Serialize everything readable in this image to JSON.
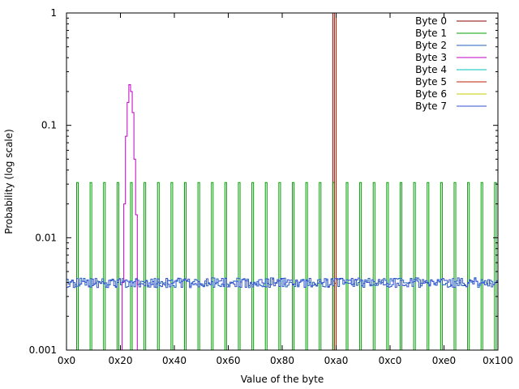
{
  "chart_data": {
    "type": "line",
    "title": "",
    "xlabel": "Value of the byte",
    "ylabel": "Probability (log scale)",
    "xlim": [
      0,
      256
    ],
    "ylim": [
      0.001,
      1
    ],
    "yscale": "log",
    "grid": false,
    "legend_position": "top-right",
    "x_ticks": [
      {
        "value": 0,
        "label": "0x0"
      },
      {
        "value": 32,
        "label": "0x20"
      },
      {
        "value": 64,
        "label": "0x40"
      },
      {
        "value": 96,
        "label": "0x60"
      },
      {
        "value": 128,
        "label": "0x80"
      },
      {
        "value": 160,
        "label": "0xa0"
      },
      {
        "value": 192,
        "label": "0xc0"
      },
      {
        "value": 224,
        "label": "0xe0"
      },
      {
        "value": 256,
        "label": "0x100"
      }
    ],
    "y_ticks": [
      {
        "value": 0.001,
        "label": "0.001"
      },
      {
        "value": 0.01,
        "label": "0.01"
      },
      {
        "value": 0.1,
        "label": "0.1"
      },
      {
        "value": 1,
        "label": "1"
      }
    ],
    "series": [
      {
        "name": "Byte 0",
        "color": "#8b0000",
        "points": [
          [
            158,
            0.001
          ],
          [
            158,
            1
          ],
          [
            159,
            1
          ],
          [
            159,
            0.001
          ]
        ]
      },
      {
        "name": "Byte 1",
        "color": "#00a000",
        "spike_x": [
          6,
          14,
          22,
          30,
          38,
          46,
          54,
          62,
          70,
          78,
          86,
          94,
          102,
          110,
          118,
          126,
          134,
          142,
          150,
          158,
          166,
          174,
          182,
          190,
          198,
          206,
          214,
          222,
          230,
          238,
          246,
          254
        ],
        "spike_y": 0.031
      },
      {
        "name": "Byte 2",
        "color": "#2060c0",
        "baseline": 0.004
      },
      {
        "name": "Byte 3",
        "color": "#c000c0",
        "points": [
          [
            33,
            0.001
          ],
          [
            33,
            0.004
          ],
          [
            34,
            0.004
          ],
          [
            34,
            0.02
          ],
          [
            35,
            0.02
          ],
          [
            35,
            0.08
          ],
          [
            36,
            0.08
          ],
          [
            36,
            0.16
          ],
          [
            37,
            0.16
          ],
          [
            37,
            0.23
          ],
          [
            38,
            0.23
          ],
          [
            38,
            0.2
          ],
          [
            39,
            0.2
          ],
          [
            39,
            0.13
          ],
          [
            40,
            0.13
          ],
          [
            40,
            0.05
          ],
          [
            41,
            0.05
          ],
          [
            41,
            0.016
          ],
          [
            42,
            0.016
          ],
          [
            42,
            0.001
          ]
        ]
      },
      {
        "name": "Byte 4",
        "color": "#00c0c0",
        "points": []
      },
      {
        "name": "Byte 5",
        "color": "#c02000",
        "points": [
          [
            159,
            0.001
          ],
          [
            159,
            1
          ],
          [
            160,
            1
          ],
          [
            160,
            0.001
          ]
        ]
      },
      {
        "name": "Byte 6",
        "color": "#c8c800",
        "points": []
      },
      {
        "name": "Byte 7",
        "color": "#3050d0",
        "baseline": 0.004
      }
    ]
  }
}
